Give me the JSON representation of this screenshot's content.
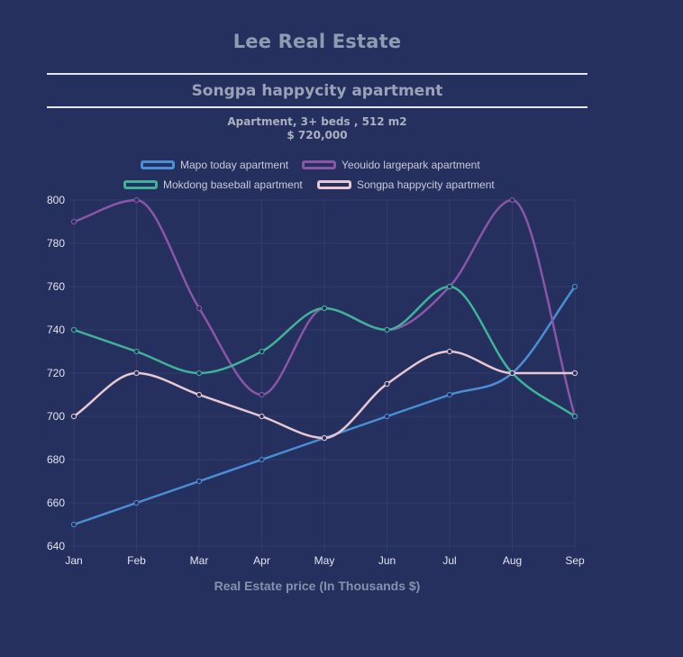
{
  "header": {
    "brand": "Lee Real Estate",
    "subtitle": "Songpa happycity apartment",
    "details_line1": "Apartment, 3+ beds , 512 m2",
    "details_line2": "$ 720,000"
  },
  "colors": {
    "background": "#26305e",
    "grid": "#333d6b"
  },
  "chart_data": {
    "type": "line",
    "title": "",
    "xlabel": "Real Estate price (In Thousands $)",
    "ylabel": "",
    "categories": [
      "Jan",
      "Feb",
      "Mar",
      "Apr",
      "May",
      "Jun",
      "Jul",
      "Aug",
      "Sep"
    ],
    "ylim": [
      640,
      800
    ],
    "yticks": [
      640,
      660,
      680,
      700,
      720,
      740,
      760,
      780,
      800
    ],
    "grid": true,
    "legend_position": "top",
    "series": [
      {
        "name": "Mapo today apartment",
        "color": "#4a8fd6",
        "values": [
          650,
          660,
          670,
          680,
          690,
          700,
          710,
          720,
          760
        ]
      },
      {
        "name": "Yeouido largepark apartment",
        "color": "#8a56a8",
        "values": [
          790,
          800,
          750,
          710,
          750,
          740,
          760,
          800,
          700
        ]
      },
      {
        "name": "Mokdong baseball apartment",
        "color": "#3fb39a",
        "values": [
          740,
          730,
          720,
          730,
          750,
          740,
          760,
          720,
          700
        ]
      },
      {
        "name": "Songpa happycity apartment",
        "color": "#e8c8d2",
        "values": [
          700,
          720,
          710,
          700,
          690,
          715,
          730,
          720,
          720
        ]
      }
    ]
  }
}
